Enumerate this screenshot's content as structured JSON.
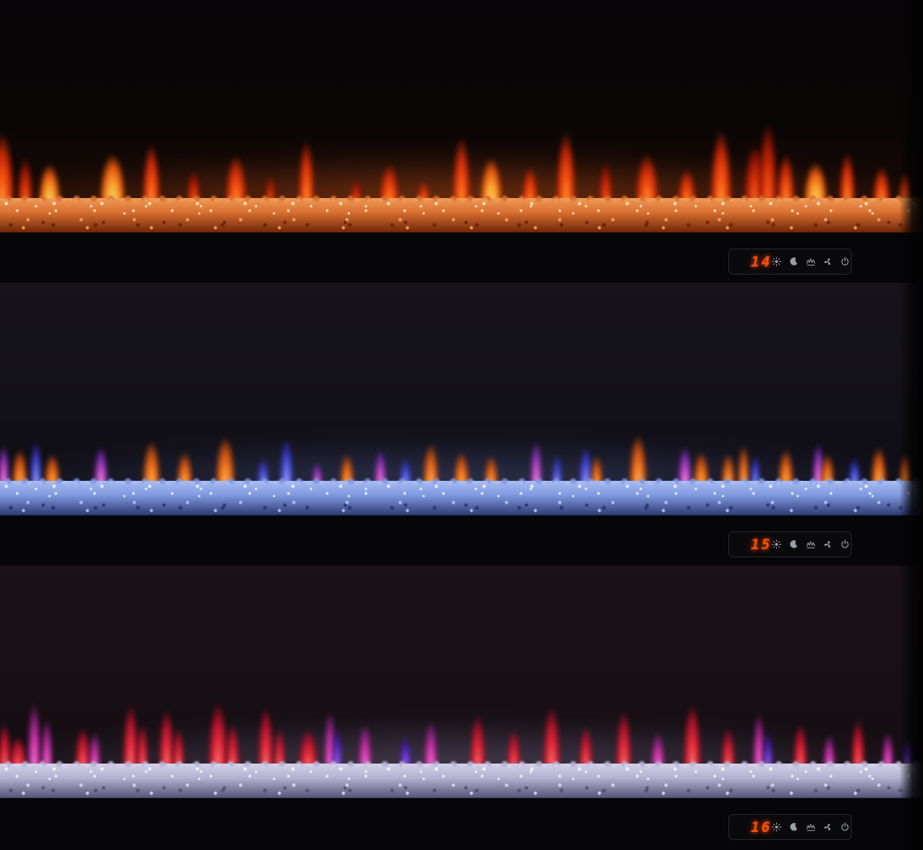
{
  "panels": [
    {
      "name": "fireplace-orange-flame-setting",
      "display": {
        "value": "14"
      },
      "theme": {
        "key": "ember",
        "bg_top": "#060406",
        "bg_mid": "#0b0606",
        "bg_low": "#1a0a05",
        "glow": "#ff6a1e",
        "glow_alpha": "0.45",
        "bed_hi": "#ffdcb0",
        "bed_mid": "#f09a58",
        "bed_base": "#d86f30",
        "bed_dark": "#6e2608",
        "ledge_line": "#1c0c06"
      },
      "flames": [
        [
          2,
          26,
          85,
          "o"
        ],
        [
          28,
          16,
          55,
          "r"
        ],
        [
          55,
          22,
          48,
          "y"
        ],
        [
          125,
          26,
          60,
          "y"
        ],
        [
          168,
          18,
          72,
          "o"
        ],
        [
          215,
          14,
          40,
          "r"
        ],
        [
          262,
          22,
          58,
          "o"
        ],
        [
          300,
          10,
          35,
          "r"
        ],
        [
          340,
          16,
          76,
          "o"
        ],
        [
          395,
          12,
          30,
          "r"
        ],
        [
          432,
          20,
          48,
          "o"
        ],
        [
          470,
          12,
          28,
          "o"
        ],
        [
          512,
          18,
          80,
          "o"
        ],
        [
          545,
          22,
          55,
          "y"
        ],
        [
          588,
          16,
          45,
          "o"
        ],
        [
          628,
          20,
          86,
          "o"
        ],
        [
          672,
          14,
          50,
          "r"
        ],
        [
          718,
          24,
          60,
          "o"
        ],
        [
          762,
          18,
          42,
          "o"
        ],
        [
          800,
          22,
          88,
          "o"
        ],
        [
          838,
          24,
          70,
          "r"
        ],
        [
          852,
          20,
          95,
          "r"
        ],
        [
          872,
          18,
          60,
          "o"
        ],
        [
          905,
          24,
          50,
          "y"
        ],
        [
          940,
          16,
          62,
          "o"
        ],
        [
          978,
          18,
          45,
          "o"
        ],
        [
          1005,
          14,
          38,
          "o"
        ]
      ]
    },
    {
      "name": "fireplace-multicolor-blue-bed-setting",
      "display": {
        "value": "15"
      },
      "theme": {
        "key": "ice",
        "bg_top": "#16131c",
        "bg_mid": "#121018",
        "bg_low": "#0e0c13",
        "glow": "#7d95e8",
        "glow_alpha": "0.32",
        "bed_hi": "#e4edff",
        "bed_mid": "#a8bcf2",
        "bed_base": "#8099de",
        "bed_dark": "#2c3a74",
        "ledge_line": "#141b2c"
      },
      "flames": [
        [
          4,
          12,
          50,
          "m"
        ],
        [
          22,
          16,
          45,
          "o"
        ],
        [
          40,
          12,
          55,
          "b"
        ],
        [
          58,
          16,
          40,
          "o"
        ],
        [
          112,
          14,
          48,
          "m"
        ],
        [
          168,
          18,
          55,
          "o"
        ],
        [
          205,
          16,
          42,
          "o"
        ],
        [
          250,
          20,
          60,
          "o"
        ],
        [
          292,
          12,
          35,
          "b"
        ],
        [
          318,
          14,
          58,
          "b"
        ],
        [
          352,
          10,
          30,
          "m"
        ],
        [
          385,
          14,
          40,
          "o"
        ],
        [
          422,
          12,
          45,
          "m"
        ],
        [
          450,
          12,
          35,
          "b"
        ],
        [
          478,
          16,
          52,
          "o"
        ],
        [
          512,
          16,
          42,
          "o"
        ],
        [
          545,
          14,
          38,
          "o"
        ],
        [
          595,
          12,
          55,
          "m"
        ],
        [
          618,
          10,
          40,
          "b"
        ],
        [
          650,
          14,
          48,
          "b"
        ],
        [
          662,
          12,
          38,
          "o"
        ],
        [
          708,
          18,
          62,
          "o"
        ],
        [
          760,
          14,
          48,
          "m"
        ],
        [
          778,
          16,
          42,
          "o"
        ],
        [
          808,
          14,
          40,
          "o"
        ],
        [
          825,
          12,
          50,
          "o"
        ],
        [
          838,
          10,
          38,
          "b"
        ],
        [
          872,
          16,
          45,
          "o"
        ],
        [
          908,
          12,
          52,
          "m"
        ],
        [
          918,
          14,
          40,
          "o"
        ],
        [
          948,
          12,
          35,
          "b"
        ],
        [
          975,
          16,
          48,
          "o"
        ],
        [
          1005,
          12,
          40,
          "o"
        ]
      ]
    },
    {
      "name": "fireplace-red-violet-clear-bed-setting",
      "display": {
        "value": "16"
      },
      "theme": {
        "key": "violet",
        "bg_top": "#1b1118",
        "bg_mid": "#170f14",
        "bg_low": "#130d11",
        "glow": "#b9a8e0",
        "glow_alpha": "0.34",
        "bed_hi": "#f4f2ff",
        "bed_mid": "#d2d0e8",
        "bed_base": "#b4b2d0",
        "bed_dark": "#565478",
        "ledge_line": "#1c1620"
      },
      "flames": [
        [
          5,
          14,
          55,
          "r"
        ],
        [
          20,
          18,
          40,
          "r"
        ],
        [
          38,
          14,
          80,
          "m"
        ],
        [
          52,
          12,
          60,
          "m"
        ],
        [
          92,
          16,
          50,
          "r"
        ],
        [
          105,
          12,
          45,
          "m"
        ],
        [
          145,
          16,
          78,
          "r"
        ],
        [
          158,
          12,
          55,
          "r"
        ],
        [
          185,
          16,
          72,
          "r"
        ],
        [
          198,
          12,
          50,
          "r"
        ],
        [
          242,
          20,
          80,
          "r"
        ],
        [
          258,
          14,
          55,
          "r"
        ],
        [
          295,
          16,
          75,
          "r"
        ],
        [
          310,
          12,
          50,
          "r"
        ],
        [
          342,
          20,
          48,
          "r"
        ],
        [
          366,
          12,
          70,
          "m"
        ],
        [
          374,
          10,
          50,
          "p"
        ],
        [
          405,
          14,
          55,
          "m"
        ],
        [
          450,
          12,
          40,
          "p"
        ],
        [
          478,
          14,
          58,
          "m"
        ],
        [
          530,
          16,
          65,
          "r"
        ],
        [
          570,
          14,
          48,
          "r"
        ],
        [
          612,
          18,
          75,
          "r"
        ],
        [
          650,
          14,
          52,
          "r"
        ],
        [
          692,
          16,
          70,
          "r"
        ],
        [
          730,
          14,
          45,
          "m"
        ],
        [
          768,
          18,
          78,
          "r"
        ],
        [
          808,
          14,
          50,
          "r"
        ],
        [
          842,
          12,
          68,
          "m"
        ],
        [
          852,
          10,
          45,
          "p"
        ],
        [
          888,
          14,
          55,
          "r"
        ],
        [
          920,
          12,
          42,
          "m"
        ],
        [
          952,
          14,
          60,
          "r"
        ],
        [
          985,
          12,
          45,
          "m"
        ],
        [
          1008,
          10,
          38,
          "p"
        ]
      ]
    }
  ],
  "controls": {
    "icon_color": "#a8aeb6",
    "digit_color": "#ff4e0a",
    "icons": [
      {
        "name": "sun-icon"
      },
      {
        "name": "moon-icon"
      },
      {
        "name": "flame-effect-icon"
      },
      {
        "name": "fan-icon"
      },
      {
        "name": "power-icon"
      }
    ]
  }
}
